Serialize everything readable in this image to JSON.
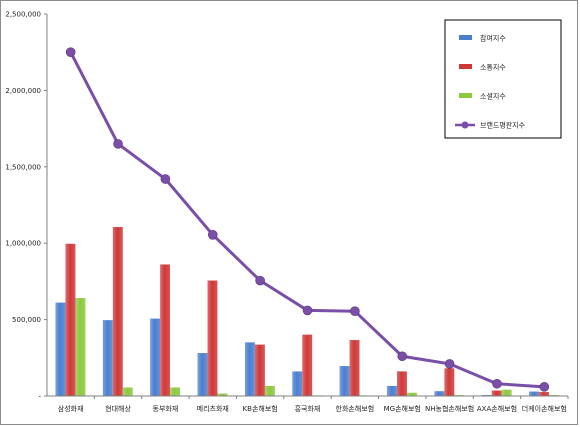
{
  "chart_data": {
    "type": "bar",
    "categories": [
      "삼성화재",
      "현대해상",
      "동부화재",
      "메리츠화재",
      "KB손해보험",
      "흥국화재",
      "한화손해보험",
      "MG손해보험",
      "NH농협손해보험",
      "AXA손해보험",
      "더케이손해보험"
    ],
    "series": [
      {
        "name": "참여지수",
        "color": "#4a7fd0",
        "kind": "bar",
        "values": [
          610000,
          495000,
          505000,
          280000,
          350000,
          160000,
          195000,
          65000,
          30000,
          5000,
          28000
        ]
      },
      {
        "name": "소통지수",
        "color": "#d03838",
        "kind": "bar",
        "values": [
          995000,
          1105000,
          860000,
          755000,
          335000,
          400000,
          365000,
          160000,
          180000,
          35000,
          25000
        ]
      },
      {
        "name": "소셜지수",
        "color": "#8cc840",
        "kind": "bar",
        "values": [
          640000,
          55000,
          55000,
          15000,
          65000,
          3000,
          3000,
          20000,
          5000,
          40000,
          5000
        ]
      },
      {
        "name": "브랜드평판지수",
        "color": "#7a4fa8",
        "kind": "line",
        "values": [
          2250000,
          1650000,
          1420000,
          1055000,
          755000,
          560000,
          555000,
          260000,
          210000,
          80000,
          60000
        ]
      }
    ],
    "yticks": [
      "-",
      "500,000",
      "1,000,000",
      "1,500,000",
      "2,000,000",
      "2,500,000"
    ],
    "ylim": [
      0,
      2500000
    ],
    "legend": "top-right",
    "grid": false
  }
}
